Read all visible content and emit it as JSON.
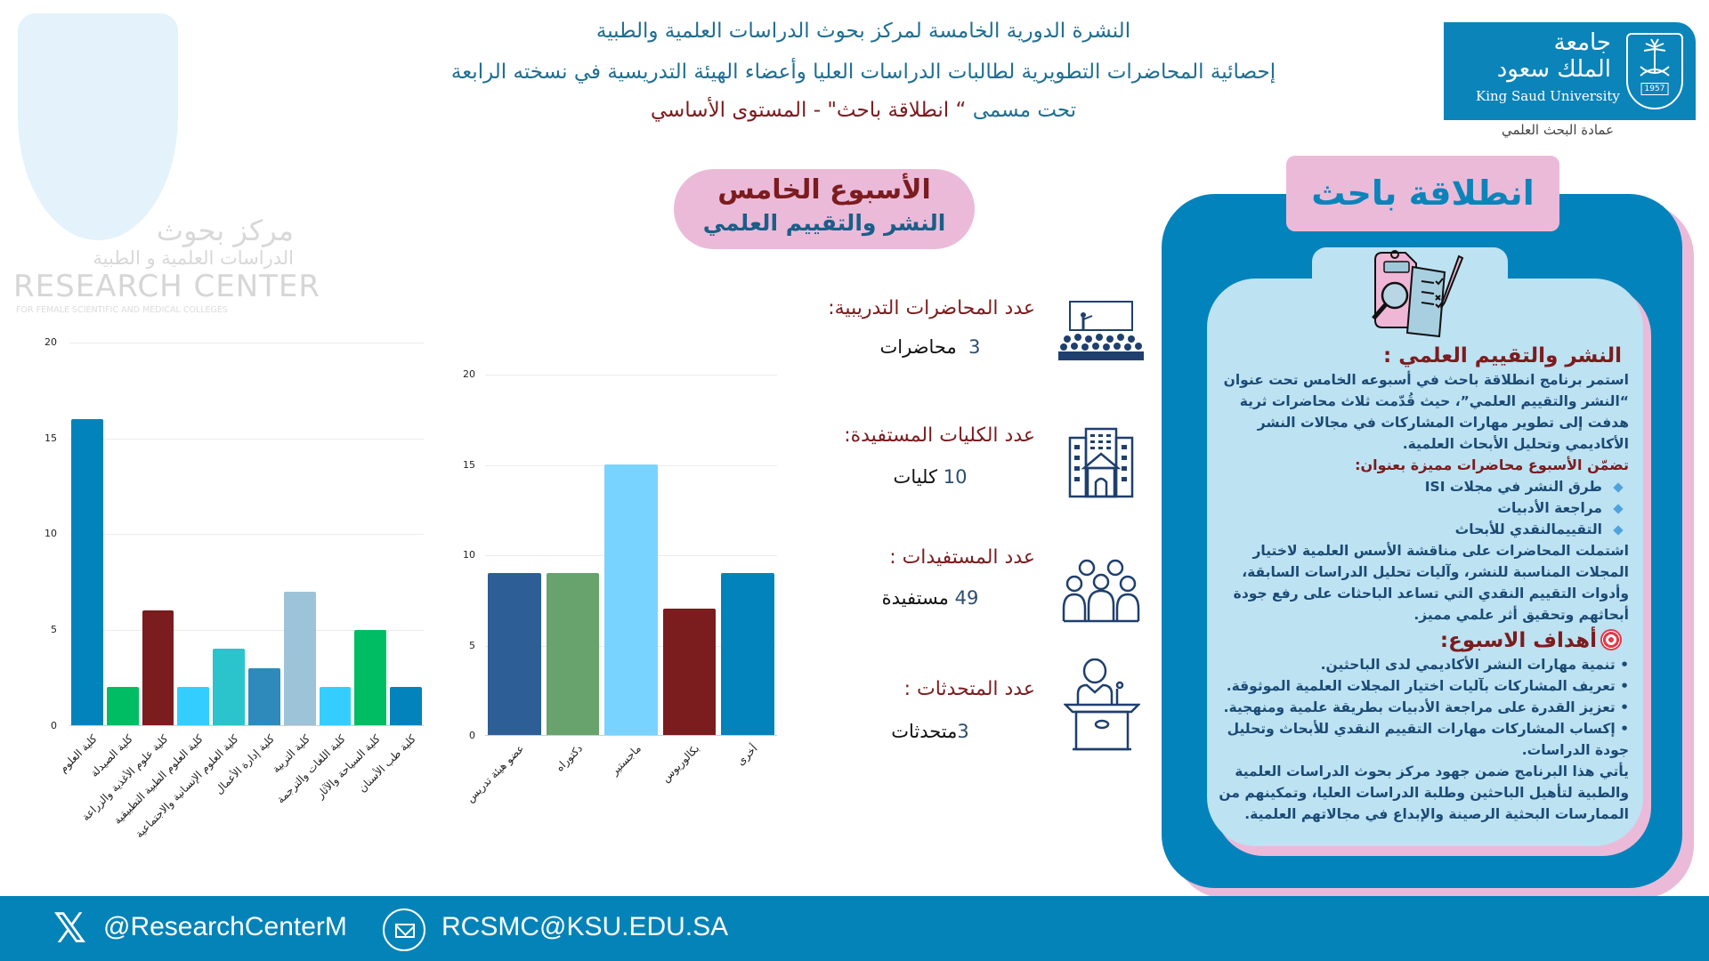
{
  "header": {
    "line1": "النشرة الدورية الخامسة لمركز بحوث الدراسات العلمية والطبية",
    "line2": "إحصائية المحاضرات التطويرية لطالبات الدراسات العليا وأعضاء الهيئة التدريسية في نسخته الرابعة",
    "line3_prefix": "تحت مسمى",
    "line3_main": "“ انطلاقة باحث\" - المستوى الأساسي"
  },
  "logo": {
    "ar_line1": "جامعة",
    "ar_line2": "الملك سعود",
    "en": "King Saud University",
    "year": "1957",
    "caption": "عمادة البحث العلمي"
  },
  "watermark": {
    "ar_line1": "مركز بحوث",
    "ar_line2": "الدراسات العلمية و الطبية",
    "en_line1": "RESEARCH CENTER",
    "en_line2": "FOR FEMALE SCIENTIFIC AND MEDICAL COLLEGES"
  },
  "week": {
    "title": "الأسبوع الخامس",
    "subtitle": "النشر والتقييم العلمي"
  },
  "stats": [
    {
      "label": "عدد المحاضرات التدريبية:",
      "number": "3",
      "unit": "محاضرات",
      "icon": "lecture-hall-icon"
    },
    {
      "label": "عدد الكليات المستفيدة:",
      "number": "10",
      "unit": "كليات",
      "icon": "college-building-icon"
    },
    {
      "label": "عدد المستفيدات :",
      "number": "49",
      "unit": "مستفيدة",
      "icon": "group-people-icon"
    },
    {
      "label": "عدد المتحدثات :",
      "number": "3",
      "unit": "متحدثات",
      "icon": "speaker-podium-icon"
    }
  ],
  "chart_data": [
    {
      "type": "bar",
      "title": "",
      "xlabel": "",
      "ylabel": "",
      "ylim": [
        0,
        20
      ],
      "yticks": [
        0,
        5,
        10,
        15,
        20
      ],
      "grid": true,
      "categories": [
        "كلية العلوم",
        "كلية الصيدلة",
        "كلية علوم الأغذية والزراعة",
        "كلية العلوم الطبية التطبيقية",
        "كلية العلوم الإنسانية والاجتماعية",
        "كلية إدارة الأعمال",
        "كلية التربية",
        "كلية اللغات والترجمة",
        "كلية السياحة والآثار",
        "كلية طب الأسنان"
      ],
      "values": [
        16,
        2,
        6,
        2,
        4,
        3,
        7,
        2,
        5,
        2
      ],
      "colors": [
        "#0383bb",
        "#00bd63",
        "#7b1c1e",
        "#33ceff",
        "#2bc4cc",
        "#2e8aba",
        "#9dc3d8",
        "#33ceff",
        "#00bd63",
        "#0383bb"
      ]
    },
    {
      "type": "bar",
      "title": "",
      "xlabel": "",
      "ylabel": "",
      "ylim": [
        0,
        20
      ],
      "yticks": [
        0,
        5,
        10,
        15,
        20
      ],
      "grid": true,
      "categories": [
        "عضو هيئة تدريس",
        "دكتوراه",
        "ماجستير",
        "بكالوريوس",
        "أخرى"
      ],
      "values": [
        9,
        9,
        15,
        7,
        9
      ],
      "colors": [
        "#2d5f96",
        "#68a36d",
        "#79d3ff",
        "#7b1c1e",
        "#0383bb"
      ]
    }
  ],
  "panel": {
    "tab_title": "انطلاقة باحث",
    "section_title": "النشر والتقييم العلمي :",
    "intro": "استمر برنامج انطلاقة باحث في أسبوعه الخامس تحت عنوان “النشر والتقييم العلمي”، حيث قُدّمت ثلاث محاضرات ثرية هدفت إلى تطوير مهارات المشاركات في مجالات النشر الأكاديمي وتحليل الأبحاث العلمية.",
    "lectures_heading": "تضمّن الأسبوع محاضرات مميزة بعنوان:",
    "lectures": [
      "طرق النشر في مجلات ISI",
      "مراجعة الأدبيات",
      "التقييمالنقدي للأبحاث"
    ],
    "details": "اشتملت المحاضرات على مناقشة الأسس العلمية لاختيار المجلات المناسبة للنشر، وآليات تحليل الدراسات السابقة، وأدوات التقييم النقدي التي تساعد الباحثات على رفع جودة أبحاثهم وتحقيق أثر علمي مميز.",
    "goals_heading": "أهداف الاسبوع:",
    "goals": [
      "• تنمية مهارات النشر الأكاديمي لدى الباحثين.",
      "• تعريف المشاركات بآليات اختيار المجلات العلمية الموثوقة.",
      "• تعزيز القدرة على مراجعة الأدبيات بطريقة علمية ومنهجية.",
      "• إكساب المشاركات مهارات التقييم النقدي للأبحاث وتحليل جودة الدراسات."
    ],
    "closing": "يأتي هذا البرنامج ضمن جهود مركز بحوث الدراسات العلمية والطبية لتأهيل الباحثين وطلبة الدراسات العليا، وتمكينهم من الممارسات البحثية الرصينة والإبداع في مجالاتهم العلمية."
  },
  "footer": {
    "x_handle": "@ResearchCenterM",
    "email": "RCSMC@KSU.EDU.SA"
  },
  "colors": {
    "primary_blue": "#0383bb",
    "maroon": "#7b1c1e",
    "pink": "#ebbad9",
    "light_blue": "#bde2f2",
    "navy_icon": "#1f3f6e"
  }
}
